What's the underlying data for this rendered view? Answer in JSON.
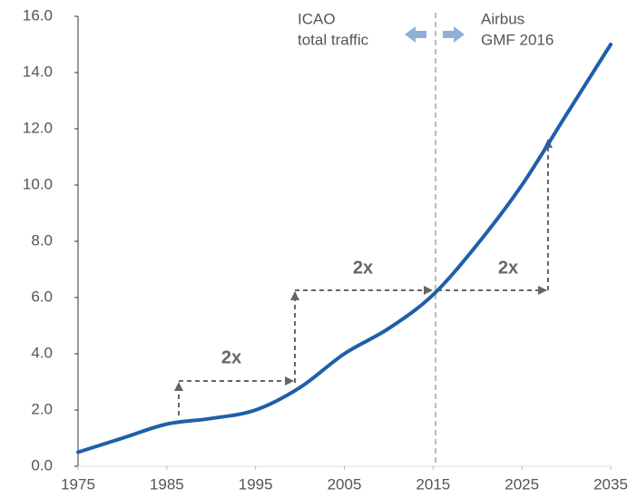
{
  "chart_data": {
    "type": "line",
    "x": [
      1975,
      1980,
      1985,
      1990,
      1995,
      2000,
      2005,
      2010,
      2015,
      2020,
      2025,
      2030,
      2035
    ],
    "series": [
      {
        "color": "#1f5fa8",
        "values": [
          0.5,
          1.0,
          1.5,
          1.7,
          2.0,
          2.8,
          4.0,
          4.9,
          6.1,
          7.9,
          10.0,
          12.5,
          15.0
        ]
      }
    ],
    "xlim": [
      1975,
      2035
    ],
    "xticks": [
      1975,
      1985,
      1995,
      2005,
      2015,
      2025,
      2035
    ],
    "ylim": [
      0,
      16
    ],
    "yticks": [
      {
        "value": 0,
        "label": "0.0"
      },
      {
        "value": 2,
        "label": "2.0"
      },
      {
        "value": 4,
        "label": "4.0"
      },
      {
        "value": 6,
        "label": "6.0"
      },
      {
        "value": 8,
        "label": "8.0"
      },
      {
        "value": 10,
        "label": "10.0"
      },
      {
        "value": 12,
        "label": "12.0"
      },
      {
        "value": 14,
        "label": "14.0"
      },
      {
        "value": 16,
        "label": "16.0"
      }
    ],
    "grid": false,
    "annotations": [
      "2x",
      "2x",
      "2x"
    ],
    "left_label": [
      "ICAO",
      "total traffic"
    ],
    "right_label": [
      "Airbus",
      "GMF 2016"
    ]
  }
}
